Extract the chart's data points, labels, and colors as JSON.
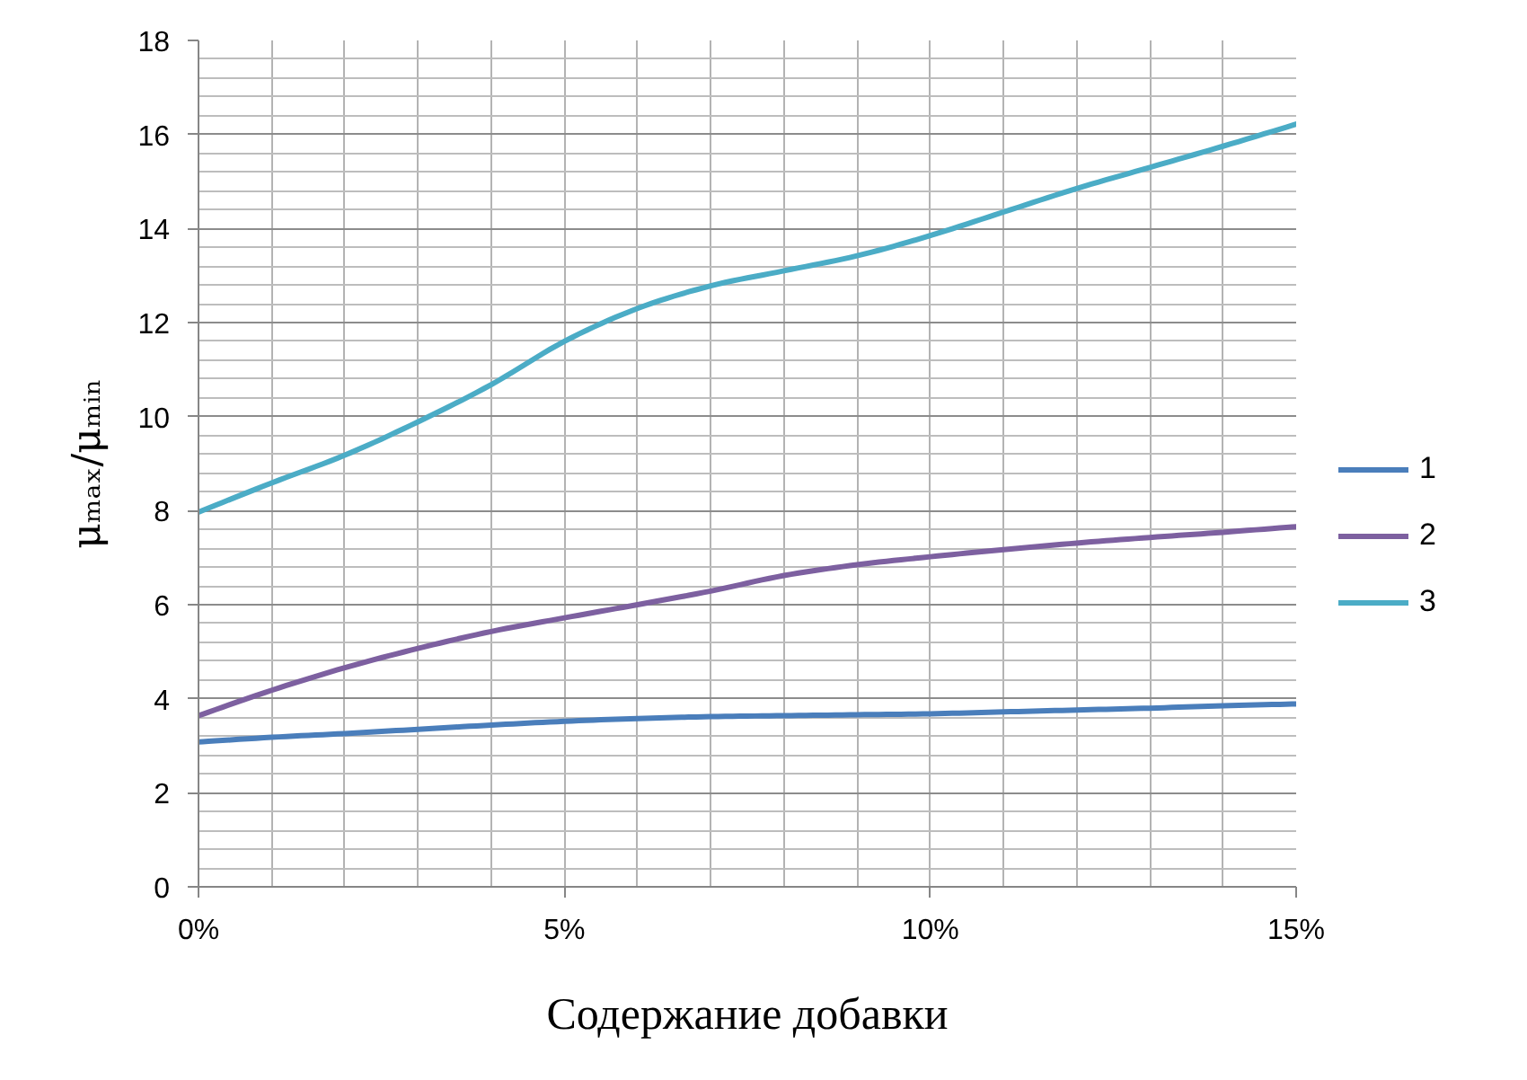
{
  "chart_data": {
    "type": "line",
    "xlabel": "Содержание добавки",
    "ylabel": "μₘₐₓ/μₘᵢₙ",
    "x": [
      0,
      1,
      2,
      3,
      4,
      5,
      6,
      7,
      8,
      9,
      10,
      11,
      12,
      13,
      14,
      15
    ],
    "xlim": [
      0,
      15
    ],
    "xticks": [
      {
        "value": 0,
        "label": "0%"
      },
      {
        "value": 5,
        "label": "5%"
      },
      {
        "value": 10,
        "label": "10%"
      },
      {
        "value": 15,
        "label": "15%"
      }
    ],
    "ylim": [
      0,
      18
    ],
    "yticks": [
      0,
      2,
      4,
      6,
      8,
      10,
      12,
      14,
      16,
      18
    ],
    "grid": true,
    "legend": "right",
    "series": [
      {
        "name": "1",
        "color": "#4a7ebb",
        "values": [
          3.08,
          3.18,
          3.26,
          3.35,
          3.44,
          3.52,
          3.58,
          3.62,
          3.64,
          3.66,
          3.68,
          3.72,
          3.76,
          3.8,
          3.85,
          3.89
        ]
      },
      {
        "name": "2",
        "color": "#7d60a0",
        "values": [
          3.64,
          4.18,
          4.66,
          5.07,
          5.43,
          5.72,
          6.0,
          6.29,
          6.62,
          6.85,
          7.02,
          7.17,
          7.31,
          7.43,
          7.54,
          7.66
        ]
      },
      {
        "name": "3",
        "color": "#4bacc6",
        "values": [
          7.97,
          8.59,
          9.18,
          9.89,
          10.68,
          11.6,
          12.3,
          12.78,
          13.1,
          13.42,
          13.85,
          14.35,
          14.85,
          15.3,
          15.75,
          16.22
        ]
      }
    ]
  }
}
